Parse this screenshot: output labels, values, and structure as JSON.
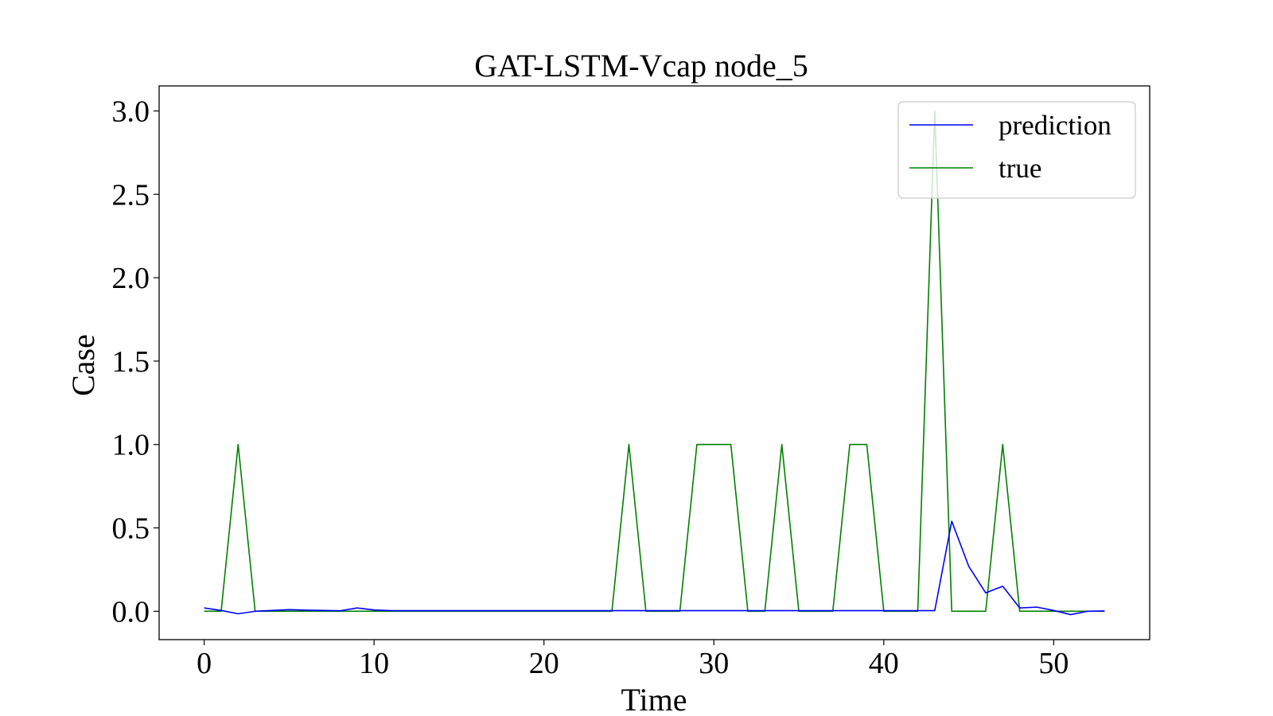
{
  "chart_data": {
    "type": "line",
    "title": "GAT-LSTM-Vcap  node_5",
    "xlabel": "Time",
    "ylabel": "Case",
    "xlim": [
      -2.65,
      55.65
    ],
    "ylim": [
      -0.17,
      3.15
    ],
    "xticks": [
      0,
      10,
      20,
      30,
      40,
      50
    ],
    "yticks": [
      0.0,
      0.5,
      1.0,
      1.5,
      2.0,
      2.5,
      3.0
    ],
    "xtick_labels": [
      "0",
      "10",
      "20",
      "30",
      "40",
      "50"
    ],
    "ytick_labels": [
      "0.0",
      "0.5",
      "1.0",
      "1.5",
      "2.0",
      "2.5",
      "3.0"
    ],
    "grid": false,
    "legend": "top-right",
    "x": [
      0,
      1,
      2,
      3,
      4,
      5,
      6,
      7,
      8,
      9,
      10,
      11,
      12,
      13,
      14,
      15,
      16,
      17,
      18,
      19,
      20,
      21,
      22,
      23,
      24,
      25,
      26,
      27,
      28,
      29,
      30,
      31,
      32,
      33,
      34,
      35,
      36,
      37,
      38,
      39,
      40,
      41,
      42,
      43,
      44,
      45,
      46,
      47,
      48,
      49,
      50,
      51,
      52,
      53
    ],
    "series": [
      {
        "name": "prediction",
        "color": "#0000ff",
        "values": [
          0.02,
          0.005,
          -0.015,
          0.0,
          0.005,
          0.01,
          0.007,
          0.005,
          0.003,
          0.02,
          0.008,
          0.004,
          0.004,
          0.004,
          0.004,
          0.004,
          0.004,
          0.004,
          0.004,
          0.004,
          0.004,
          0.004,
          0.004,
          0.004,
          0.004,
          0.004,
          0.004,
          0.004,
          0.004,
          0.004,
          0.004,
          0.004,
          0.004,
          0.004,
          0.004,
          0.004,
          0.004,
          0.004,
          0.004,
          0.004,
          0.004,
          0.004,
          0.004,
          0.004,
          0.54,
          0.27,
          0.11,
          0.15,
          0.02,
          0.025,
          0.005,
          -0.02,
          0.0,
          0.002
        ]
      },
      {
        "name": "true",
        "color": "#008000",
        "values": [
          0,
          0,
          1,
          0,
          0,
          0,
          0,
          0,
          0,
          0,
          0,
          0,
          0,
          0,
          0,
          0,
          0,
          0,
          0,
          0,
          0,
          0,
          0,
          0,
          0,
          1,
          0,
          0,
          0,
          1,
          1,
          1,
          0,
          0,
          1,
          0,
          0,
          0,
          1,
          1,
          0,
          0,
          0,
          3,
          0,
          0,
          0,
          1,
          0,
          0,
          0,
          0,
          0,
          0
        ]
      }
    ]
  }
}
